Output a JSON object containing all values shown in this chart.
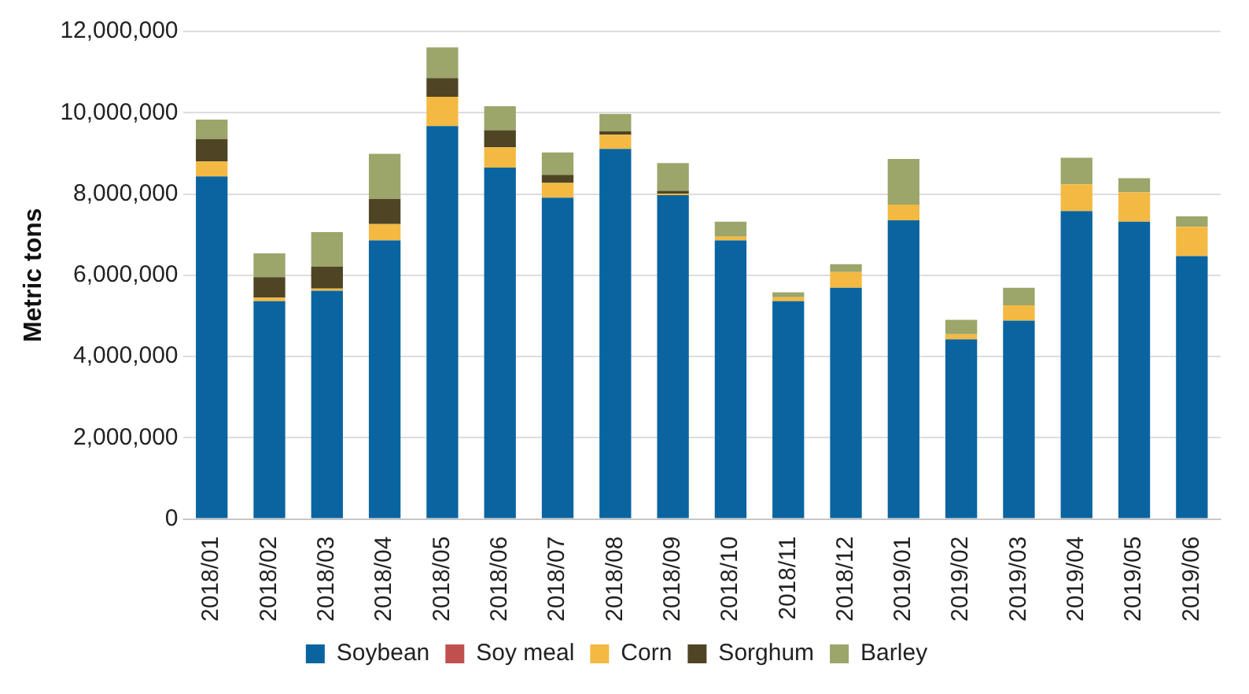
{
  "chart_data": {
    "type": "bar",
    "ylabel": "Metric tons",
    "stacked": true,
    "grid": "y",
    "legend": "bottom",
    "categories": [
      "2018/01",
      "2018/02",
      "2018/03",
      "2018/04",
      "2018/05",
      "2018/06",
      "2018/07",
      "2018/08",
      "2018/09",
      "2018/10",
      "2018/11",
      "2018/12",
      "2019/01",
      "2019/02",
      "2019/03",
      "2019/04",
      "2019/05",
      "2019/06"
    ],
    "ylim": [
      0,
      12000000
    ],
    "yticks": [
      {
        "value": 0,
        "label": "0"
      },
      {
        "value": 2000000,
        "label": "2,000,000"
      },
      {
        "value": 4000000,
        "label": "4,000,000"
      },
      {
        "value": 6000000,
        "label": "6,000,000"
      },
      {
        "value": 8000000,
        "label": "8,000,000"
      },
      {
        "value": 10000000,
        "label": "10,000,000"
      },
      {
        "value": 12000000,
        "label": "12,000,000"
      }
    ],
    "series": [
      {
        "name": "Soybean",
        "color": "#0a64a0",
        "values": [
          8430000,
          5360000,
          5620000,
          6860000,
          9670000,
          8650000,
          7910000,
          9110000,
          7970000,
          6860000,
          5360000,
          5690000,
          7350000,
          4420000,
          4880000,
          7580000,
          7320000,
          6470000
        ]
      },
      {
        "name": "Soy meal",
        "color": "#c0504d",
        "values": [
          0,
          0,
          0,
          0,
          0,
          0,
          0,
          0,
          0,
          0,
          0,
          0,
          0,
          0,
          0,
          0,
          0,
          0
        ]
      },
      {
        "name": "Corn",
        "color": "#f4b942",
        "values": [
          370000,
          90000,
          50000,
          400000,
          720000,
          500000,
          360000,
          350000,
          40000,
          90000,
          100000,
          390000,
          390000,
          130000,
          380000,
          660000,
          720000,
          720000
        ]
      },
      {
        "name": "Sorghum",
        "color": "#4f4424",
        "values": [
          550000,
          500000,
          540000,
          620000,
          460000,
          420000,
          200000,
          80000,
          70000,
          0,
          0,
          0,
          0,
          0,
          0,
          0,
          0,
          0
        ]
      },
      {
        "name": "Barley",
        "color": "#9ca56a",
        "values": [
          480000,
          590000,
          850000,
          1110000,
          760000,
          590000,
          550000,
          430000,
          680000,
          370000,
          120000,
          190000,
          1120000,
          350000,
          430000,
          650000,
          350000,
          260000
        ]
      }
    ]
  }
}
